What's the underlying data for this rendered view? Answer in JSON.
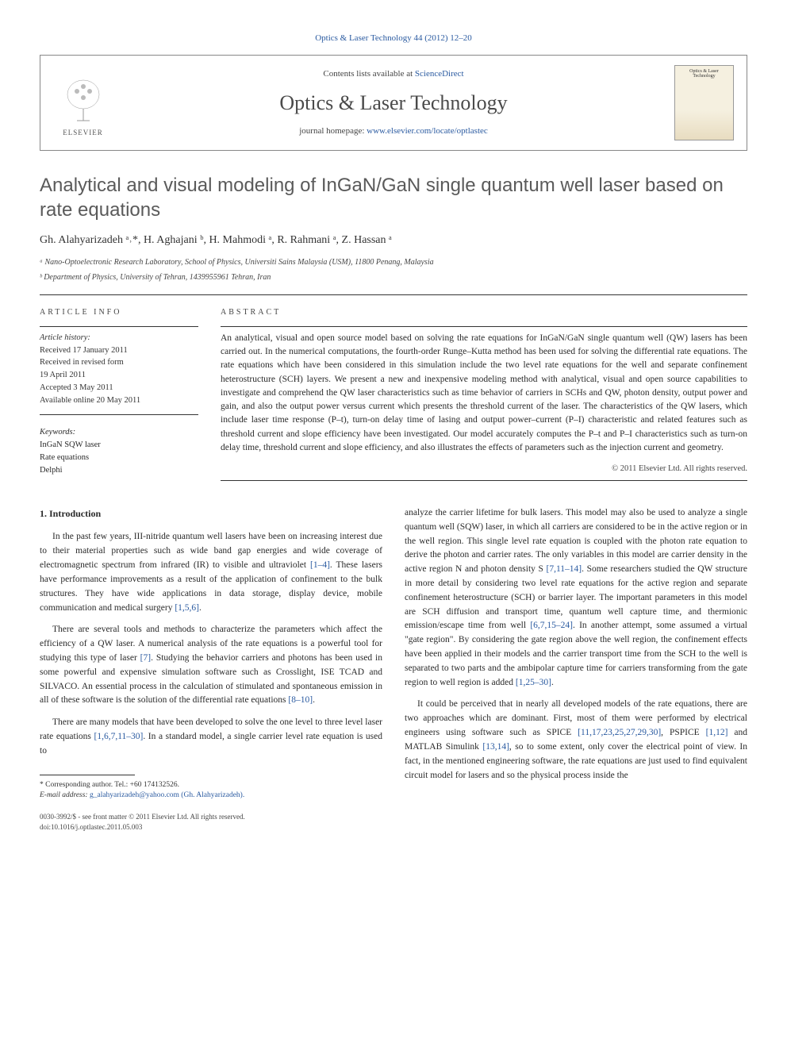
{
  "top_citation": "Optics & Laser Technology 44 (2012) 12–20",
  "header": {
    "contents_prefix": "Contents lists available at ",
    "contents_link": "ScienceDirect",
    "journal_name": "Optics & Laser Technology",
    "homepage_prefix": "journal homepage: ",
    "homepage_link": "www.elsevier.com/locate/optlastec",
    "publisher": "ELSEVIER",
    "cover_label": "Optics & Laser Technology"
  },
  "article": {
    "title": "Analytical and visual modeling of InGaN/GaN single quantum well laser based on rate equations",
    "authors_html": "Gh. Alahyarizadeh ᵃ˒*, H. Aghajani ᵇ, H. Mahmodi ᵃ, R. Rahmani ᵃ, Z. Hassan ᵃ",
    "affiliations": [
      "ᵃ Nano-Optoelectronic Research Laboratory, School of Physics, Universiti Sains Malaysia (USM), 11800 Penang, Malaysia",
      "ᵇ Department of Physics, University of Tehran, 1439955961 Tehran, Iran"
    ]
  },
  "info": {
    "heading": "ARTICLE INFO",
    "history_label": "Article history:",
    "history": [
      "Received 17 January 2011",
      "Received in revised form",
      "19 April 2011",
      "Accepted 3 May 2011",
      "Available online 20 May 2011"
    ],
    "keywords_label": "Keywords:",
    "keywords": [
      "InGaN SQW laser",
      "Rate equations",
      "Delphi"
    ]
  },
  "abstract": {
    "heading": "ABSTRACT",
    "text": "An analytical, visual and open source model based on solving the rate equations for InGaN/GaN single quantum well (QW) lasers has been carried out. In the numerical computations, the fourth-order Runge–Kutta method has been used for solving the differential rate equations. The rate equations which have been considered in this simulation include the two level rate equations for the well and separate confinement heterostructure (SCH) layers. We present a new and inexpensive modeling method with analytical, visual and open source capabilities to investigate and comprehend the QW laser characteristics such as time behavior of carriers in SCHs and QW, photon density, output power and gain, and also the output power versus current which presents the threshold current of the laser. The characteristics of the QW lasers, which include laser time response (P–t), turn-on delay time of lasing and output power–current (P–I) characteristic and related features such as threshold current and slope efficiency have been investigated. Our model accurately computes the P–t and P–I characteristics such as turn-on delay time, threshold current and slope efficiency, and also illustrates the effects of parameters such as the injection current and geometry.",
    "copyright": "© 2011 Elsevier Ltd. All rights reserved."
  },
  "body": {
    "section_heading": "1. Introduction",
    "col1": [
      "In the past few years, III-nitride quantum well lasers have been on increasing interest due to their material properties such as wide band gap energies and wide coverage of electromagnetic spectrum from infrared (IR) to visible and ultraviolet [1–4]. These lasers have performance improvements as a result of the application of confinement to the bulk structures. They have wide applications in data storage, display device, mobile communication and medical surgery [1,5,6].",
      "There are several tools and methods to characterize the parameters which affect the efficiency of a QW laser. A numerical analysis of the rate equations is a powerful tool for studying this type of laser [7]. Studying the behavior carriers and photons has been used in some powerful and expensive simulation software such as Crosslight, ISE TCAD and SILVACO. An essential process in the calculation of stimulated and spontaneous emission in all of these software is the solution of the differential rate equations [8–10].",
      "There are many models that have been developed to solve the one level to three level laser rate equations [1,6,7,11–30]. In a standard model, a single carrier level rate equation is used to"
    ],
    "col2": [
      "analyze the carrier lifetime for bulk lasers. This model may also be used to analyze a single quantum well (SQW) laser, in which all carriers are considered to be in the active region or in the well region. This single level rate equation is coupled with the photon rate equation to derive the photon and carrier rates. The only variables in this model are carrier density in the active region N and photon density S [7,11–14]. Some researchers studied the QW structure in more detail by considering two level rate equations for the active region and separate confinement heterostructure (SCH) or barrier layer. The important parameters in this model are SCH diffusion and transport time, quantum well capture time, and thermionic emission/escape time from well [6,7,15–24]. In another attempt, some assumed a virtual \"gate region\". By considering the gate region above the well region, the confinement effects have been applied in their models and the carrier transport time from the SCH to the well is separated to two parts and the ambipolar capture time for carriers transforming from the gate region to well region is added [1,25–30].",
      "It could be perceived that in nearly all developed models of the rate equations, there are two approaches which are dominant. First, most of them were performed by electrical engineers using software such as SPICE [11,17,23,25,27,29,30], PSPICE [1,12] and MATLAB Simulink [13,14], so to some extent, only cover the electrical point of view. In fact, in the mentioned engineering software, the rate equations are just used to find equivalent circuit model for lasers and so the physical process inside the"
    ]
  },
  "footnote": {
    "corr": "* Corresponding author. Tel.: +60 174132526.",
    "email_label": "E-mail address:",
    "email": "g_alahyarizadeh@yahoo.com (Gh. Alahyarizadeh)."
  },
  "bottom": {
    "issn": "0030-3992/$ - see front matter © 2011 Elsevier Ltd. All rights reserved.",
    "doi": "doi:10.1016/j.optlastec.2011.05.003"
  },
  "colors": {
    "link": "#2a5aa0",
    "text": "#2a2a2a",
    "muted": "#444444",
    "rule": "#333333"
  }
}
